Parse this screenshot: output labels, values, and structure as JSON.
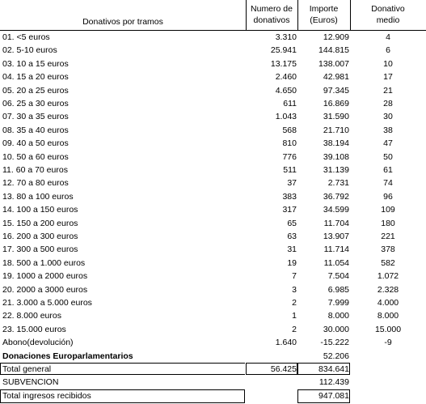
{
  "header": {
    "col1": "Donativos por tramos",
    "col2_line1": "Numero de",
    "col2_line2": "donativos",
    "col3_line1": "Importe",
    "col3_line2": "(Euros)",
    "col4_line1": "Donativo",
    "col4_line2": "medio"
  },
  "rows": [
    {
      "label": "01. <5 euros",
      "count": "3.310",
      "amount": "12.909",
      "avg": "4"
    },
    {
      "label": "02. 5-10 euros",
      "count": "25.941",
      "amount": "144.815",
      "avg": "6"
    },
    {
      "label": "03. 10 a 15 euros",
      "count": "13.175",
      "amount": "138.007",
      "avg": "10"
    },
    {
      "label": "04. 15 a 20 euros",
      "count": "2.460",
      "amount": "42.981",
      "avg": "17"
    },
    {
      "label": "05. 20 a 25 euros",
      "count": "4.650",
      "amount": "97.345",
      "avg": "21"
    },
    {
      "label": "06. 25 a 30 euros",
      "count": "611",
      "amount": "16.869",
      "avg": "28"
    },
    {
      "label": "07. 30 a 35 euros",
      "count": "1.043",
      "amount": "31.590",
      "avg": "30"
    },
    {
      "label": "08. 35 a 40 euros",
      "count": "568",
      "amount": "21.710",
      "avg": "38"
    },
    {
      "label": "09. 40 a 50 euros",
      "count": "810",
      "amount": "38.194",
      "avg": "47"
    },
    {
      "label": "10. 50 a 60 euros",
      "count": "776",
      "amount": "39.108",
      "avg": "50"
    },
    {
      "label": "11. 60 a 70 euros",
      "count": "511",
      "amount": "31.139",
      "avg": "61"
    },
    {
      "label": "12. 70 a 80 euros",
      "count": "37",
      "amount": "2.731",
      "avg": "74"
    },
    {
      "label": "13. 80 a 100 euros",
      "count": "383",
      "amount": "36.792",
      "avg": "96"
    },
    {
      "label": "14. 100 a 150 euros",
      "count": "317",
      "amount": "34.599",
      "avg": "109"
    },
    {
      "label": "15. 150 a 200 euros",
      "count": "65",
      "amount": "11.704",
      "avg": "180"
    },
    {
      "label": "16. 200 a 300 euros",
      "count": "63",
      "amount": "13.907",
      "avg": "221"
    },
    {
      "label": "17. 300 a 500 euros",
      "count": "31",
      "amount": "11.714",
      "avg": "378"
    },
    {
      "label": "18. 500 a 1.000 euros",
      "count": "19",
      "amount": "11.054",
      "avg": "582"
    },
    {
      "label": "19. 1000 a 2000 euros",
      "count": "7",
      "amount": "7.504",
      "avg": "1.072"
    },
    {
      "label": "20. 2000 a 3000 euros",
      "count": "3",
      "amount": "6.985",
      "avg": "2.328"
    },
    {
      "label": "21. 3.000 a 5.000 euros",
      "count": "2",
      "amount": "7.999",
      "avg": "4.000"
    },
    {
      "label": "22. 8.000 euros",
      "count": "1",
      "amount": "8.000",
      "avg": "8.000"
    },
    {
      "label": "23. 15.000 euros",
      "count": "2",
      "amount": "30.000",
      "avg": "15.000"
    },
    {
      "label": "Abono(devolución)",
      "count": "1.640",
      "amount": "-15.222",
      "avg": "-9"
    }
  ],
  "europarl": {
    "label": "Donaciones Europarlamentarios",
    "amount": "52.206"
  },
  "total_general": {
    "label": "Total general",
    "count": "56.425",
    "amount": "834.641"
  },
  "subvencion": {
    "label": "SUBVENCION",
    "amount": "112.439"
  },
  "total_ingresos": {
    "label": "Total ingresos recibidos",
    "amount": "947.081"
  }
}
